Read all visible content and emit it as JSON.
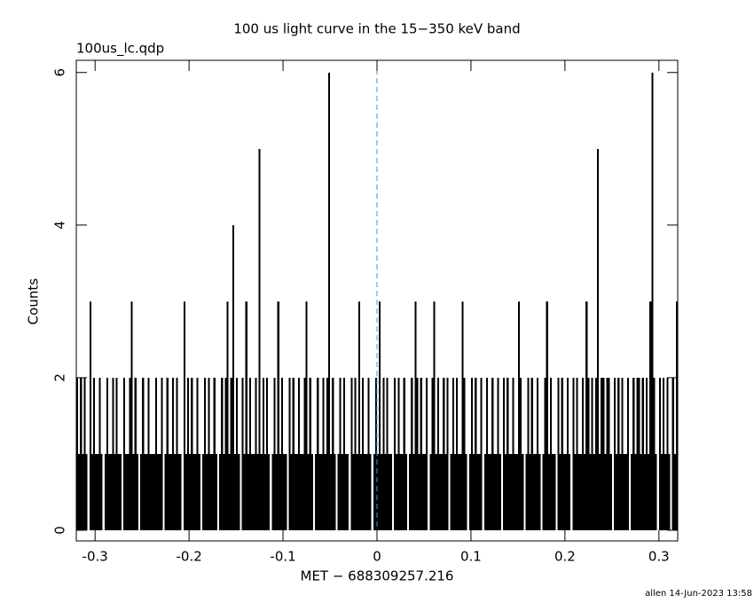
{
  "chart_data": {
    "type": "histogram",
    "title": "100 us light curve in the 15−350 keV band",
    "subtitle": "100us_lc.qdp",
    "x_label": "MET − 688309257.216",
    "y_label": "Counts",
    "footer": "allen 14-Jun-2023 13:58",
    "color": "#000000",
    "vline": {
      "x": 0,
      "color": "#3a9ad0"
    },
    "xlim": [
      -0.32,
      0.32
    ],
    "xticks": [
      -0.3,
      -0.2,
      -0.1,
      0,
      0.1,
      0.2,
      0.3
    ],
    "ylim": [
      -0.14,
      6.16
    ],
    "yticks": [
      0,
      2,
      4,
      6
    ],
    "bins": [
      -0.32,
      -0.318,
      -0.316,
      -0.314,
      -0.312,
      -0.31,
      -0.308,
      -0.306,
      -0.304,
      -0.302,
      -0.3,
      -0.298,
      -0.296,
      -0.294,
      -0.292,
      -0.29,
      -0.288,
      -0.286,
      -0.284,
      -0.282,
      -0.28,
      -0.278,
      -0.276,
      -0.274,
      -0.272,
      -0.27,
      -0.268,
      -0.266,
      -0.264,
      -0.262,
      -0.26,
      -0.258,
      -0.256,
      -0.254,
      -0.252,
      -0.25,
      -0.248,
      -0.246,
      -0.244,
      -0.242,
      -0.24,
      -0.238,
      -0.236,
      -0.234,
      -0.232,
      -0.23,
      -0.228,
      -0.226,
      -0.224,
      -0.222,
      -0.22,
      -0.218,
      -0.216,
      -0.214,
      -0.212,
      -0.21,
      -0.208,
      -0.206,
      -0.204,
      -0.202,
      -0.2,
      -0.198,
      -0.196,
      -0.194,
      -0.192,
      -0.19,
      -0.188,
      -0.186,
      -0.184,
      -0.182,
      -0.18,
      -0.178,
      -0.176,
      -0.174,
      -0.172,
      -0.17,
      -0.168,
      -0.166,
      -0.164,
      -0.162,
      -0.16,
      -0.158,
      -0.156,
      -0.154,
      -0.152,
      -0.15,
      -0.148,
      -0.146,
      -0.144,
      -0.142,
      -0.14,
      -0.138,
      -0.136,
      -0.134,
      -0.132,
      -0.13,
      -0.128,
      -0.126,
      -0.124,
      -0.122,
      -0.12,
      -0.118,
      -0.116,
      -0.114,
      -0.112,
      -0.11,
      -0.108,
      -0.106,
      -0.104,
      -0.102,
      -0.1,
      -0.098,
      -0.096,
      -0.094,
      -0.092,
      -0.09,
      -0.088,
      -0.086,
      -0.084,
      -0.082,
      -0.08,
      -0.078,
      -0.076,
      -0.074,
      -0.072,
      -0.07,
      -0.068,
      -0.066,
      -0.064,
      -0.062,
      -0.06,
      -0.058,
      -0.056,
      -0.054,
      -0.052,
      -0.05,
      -0.048,
      -0.046,
      -0.044,
      -0.042,
      -0.04,
      -0.038,
      -0.036,
      -0.034,
      -0.032,
      -0.03,
      -0.028,
      -0.026,
      -0.024,
      -0.022,
      -0.02,
      -0.018,
      -0.016,
      -0.014,
      -0.012,
      -0.01,
      -0.008,
      -0.006,
      -0.004,
      -0.002,
      0,
      0.002,
      0.004,
      0.006,
      0.008,
      0.01,
      0.012,
      0.014,
      0.016,
      0.018,
      0.02,
      0.022,
      0.024,
      0.026,
      0.028,
      0.03,
      0.032,
      0.034,
      0.036,
      0.038,
      0.04,
      0.042,
      0.044,
      0.046,
      0.048,
      0.05,
      0.052,
      0.054,
      0.056,
      0.058,
      0.06,
      0.062,
      0.064,
      0.066,
      0.068,
      0.07,
      0.072,
      0.074,
      0.076,
      0.078,
      0.08,
      0.082,
      0.084,
      0.086,
      0.088,
      0.09,
      0.092,
      0.094,
      0.096,
      0.098,
      0.1,
      0.102,
      0.104,
      0.106,
      0.108,
      0.11,
      0.112,
      0.114,
      0.116,
      0.118,
      0.12,
      0.122,
      0.124,
      0.126,
      0.128,
      0.13,
      0.132,
      0.134,
      0.136,
      0.138,
      0.14,
      0.142,
      0.144,
      0.146,
      0.148,
      0.15,
      0.152,
      0.154,
      0.156,
      0.158,
      0.16,
      0.162,
      0.164,
      0.166,
      0.168,
      0.17,
      0.172,
      0.174,
      0.176,
      0.178,
      0.18,
      0.182,
      0.184,
      0.186,
      0.188,
      0.19,
      0.192,
      0.194,
      0.196,
      0.198,
      0.2,
      0.202,
      0.204,
      0.206,
      0.208,
      0.21,
      0.212,
      0.214,
      0.216,
      0.218,
      0.22,
      0.222,
      0.224,
      0.226,
      0.228,
      0.23,
      0.232,
      0.234,
      0.236,
      0.238,
      0.24,
      0.242,
      0.244,
      0.246,
      0.248,
      0.25,
      0.252,
      0.254,
      0.256,
      0.258,
      0.26,
      0.262,
      0.264,
      0.266,
      0.268,
      0.27,
      0.272,
      0.274,
      0.276,
      0.278,
      0.28,
      0.282,
      0.284,
      0.286,
      0.288,
      0.29,
      0.292,
      0.294,
      0.296,
      0.298,
      0.3,
      0.302,
      0.304,
      0.306,
      0.308,
      0.31,
      0.312,
      0.314,
      0.316,
      0.318,
      0.32
    ],
    "values": [
      2,
      1,
      2,
      1,
      2,
      1,
      0,
      3,
      1,
      2,
      1,
      1,
      2,
      1,
      0,
      1,
      2,
      1,
      1,
      2,
      1,
      2,
      1,
      1,
      0,
      2,
      1,
      1,
      2,
      3,
      1,
      2,
      1,
      0,
      1,
      2,
      1,
      1,
      2,
      1,
      1,
      1,
      2,
      1,
      1,
      2,
      0,
      1,
      2,
      1,
      1,
      2,
      1,
      2,
      1,
      1,
      0,
      3,
      1,
      2,
      1,
      2,
      1,
      1,
      2,
      1,
      0,
      1,
      2,
      1,
      2,
      1,
      1,
      2,
      1,
      0,
      1,
      2,
      1,
      2,
      3,
      1,
      2,
      4,
      1,
      2,
      1,
      0,
      2,
      1,
      3,
      1,
      2,
      1,
      1,
      2,
      1,
      5,
      1,
      2,
      1,
      2,
      1,
      0,
      1,
      2,
      1,
      3,
      1,
      2,
      1,
      1,
      0,
      2,
      1,
      2,
      1,
      1,
      2,
      1,
      1,
      2,
      3,
      1,
      2,
      1,
      0,
      1,
      2,
      1,
      1,
      2,
      1,
      2,
      6,
      1,
      2,
      1,
      0,
      1,
      2,
      1,
      2,
      1,
      1,
      0,
      2,
      1,
      2,
      1,
      3,
      1,
      2,
      1,
      1,
      2,
      1,
      0,
      1,
      2,
      1,
      3,
      1,
      2,
      1,
      2,
      1,
      1,
      0,
      2,
      1,
      2,
      1,
      1,
      2,
      1,
      0,
      1,
      2,
      1,
      3,
      2,
      1,
      2,
      1,
      1,
      2,
      0,
      1,
      2,
      3,
      1,
      2,
      1,
      1,
      2,
      1,
      2,
      0,
      1,
      2,
      1,
      2,
      1,
      1,
      3,
      2,
      1,
      0,
      1,
      2,
      1,
      2,
      1,
      1,
      2,
      0,
      1,
      2,
      1,
      1,
      2,
      1,
      1,
      2,
      1,
      0,
      2,
      1,
      2,
      1,
      1,
      2,
      1,
      1,
      3,
      2,
      1,
      0,
      1,
      2,
      1,
      2,
      1,
      1,
      2,
      1,
      0,
      1,
      2,
      3,
      1,
      2,
      1,
      1,
      0,
      2,
      1,
      2,
      1,
      1,
      2,
      1,
      0,
      2,
      1,
      2,
      1,
      1,
      2,
      1,
      3,
      2,
      1,
      2,
      1,
      2,
      5,
      1,
      2,
      2,
      1,
      2,
      2,
      1,
      0,
      2,
      1,
      2,
      1,
      2,
      1,
      1,
      2,
      0,
      1,
      2,
      1,
      2,
      2,
      1,
      2,
      1,
      2,
      1,
      3,
      6,
      2,
      1,
      0,
      2,
      1,
      2,
      1,
      2,
      1,
      0,
      2,
      1,
      3
    ]
  }
}
